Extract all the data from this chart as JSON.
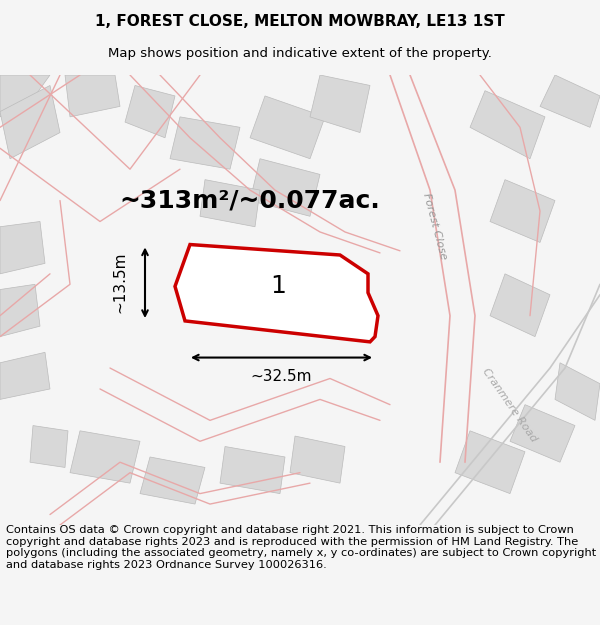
{
  "title_line1": "1, FOREST CLOSE, MELTON MOWBRAY, LE13 1ST",
  "title_line2": "Map shows position and indicative extent of the property.",
  "area_text": "~313m²/~0.077ac.",
  "label_number": "1",
  "dim_width": "~32.5m",
  "dim_height": "~13.5m",
  "road_label_forest": "Forest Close",
  "road_label_cranmere": "Cranmere Road",
  "footer_text": "Contains OS data © Crown copyright and database right 2021. This information is subject to Crown copyright and database rights 2023 and is reproduced with the permission of HM Land Registry. The polygons (including the associated geometry, namely x, y co-ordinates) are subject to Crown copyright and database rights 2023 Ordnance Survey 100026316.",
  "bg_color": "#f5f5f5",
  "map_bg": "#f0eeee",
  "plot_border_color": "#cc0000",
  "building_color": "#d8d8d8",
  "road_line_color": "#e8a8a8",
  "road_line_color2": "#c8c8c8",
  "dim_line_color": "#000000",
  "title_fontsize": 11,
  "subtitle_fontsize": 9.5,
  "area_fontsize": 18,
  "label_fontsize": 18,
  "footer_fontsize": 8.2
}
